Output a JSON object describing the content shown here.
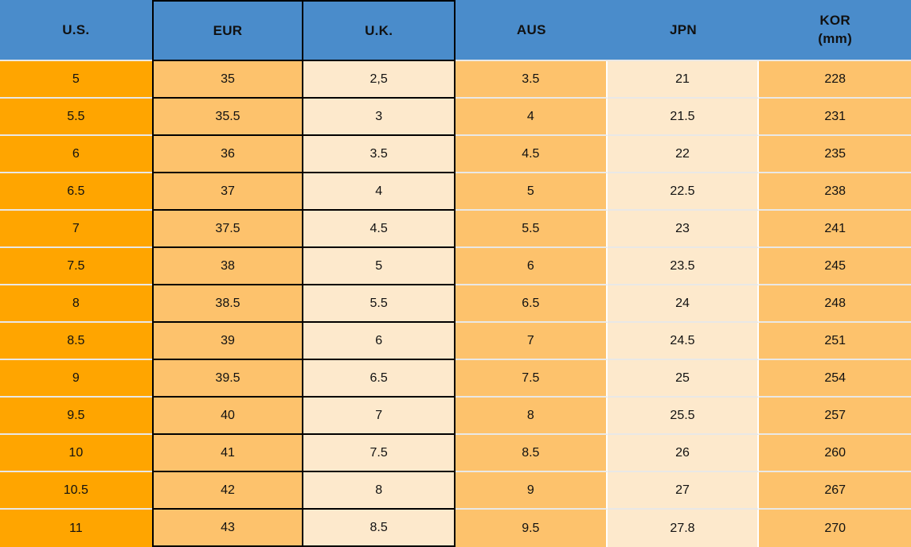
{
  "chart_data": {
    "type": "table",
    "columns": [
      {
        "key": "us",
        "label": "U.S."
      },
      {
        "key": "eur",
        "label": "EUR"
      },
      {
        "key": "uk",
        "label": "U.K."
      },
      {
        "key": "aus",
        "label": "AUS"
      },
      {
        "key": "jpn",
        "label": "JPN"
      },
      {
        "key": "kor",
        "label": "KOR",
        "sublabel": "(mm)"
      }
    ],
    "rows": [
      [
        "5",
        "35",
        "2,5",
        "3.5",
        "21",
        "228"
      ],
      [
        "5.5",
        "35.5",
        "3",
        "4",
        "21.5",
        "231"
      ],
      [
        "6",
        "36",
        "3.5",
        "4.5",
        "22",
        "235"
      ],
      [
        "6.5",
        "37",
        "4",
        "5",
        "22.5",
        "238"
      ],
      [
        "7",
        "37.5",
        "4.5",
        "5.5",
        "23",
        "241"
      ],
      [
        "7.5",
        "38",
        "5",
        "6",
        "23.5",
        "245"
      ],
      [
        "8",
        "38.5",
        "5.5",
        "6.5",
        "24",
        "248"
      ],
      [
        "8.5",
        "39",
        "6",
        "7",
        "24.5",
        "251"
      ],
      [
        "9",
        "39.5",
        "6.5",
        "7.5",
        "25",
        "254"
      ],
      [
        "9.5",
        "40",
        "7",
        "8",
        "25.5",
        "257"
      ],
      [
        "10",
        "41",
        "7.5",
        "8.5",
        "26",
        "260"
      ],
      [
        "10.5",
        "42",
        "8",
        "9",
        "27",
        "267"
      ],
      [
        "11",
        "43",
        "8.5",
        "9.5",
        "27.8",
        "270"
      ]
    ],
    "legend_position": "none",
    "grid": "row-separators"
  },
  "colors": {
    "header_bg": "#4A8CCB",
    "us_column_bg": "#FFA500",
    "accent_column_bg": "#FDC26C",
    "light_column_bg": "#FDE9CC",
    "black_border": "#000000",
    "row_separator": "#E9E8E6",
    "vertical_separator": "#FFFFFF",
    "text": "#111111"
  }
}
